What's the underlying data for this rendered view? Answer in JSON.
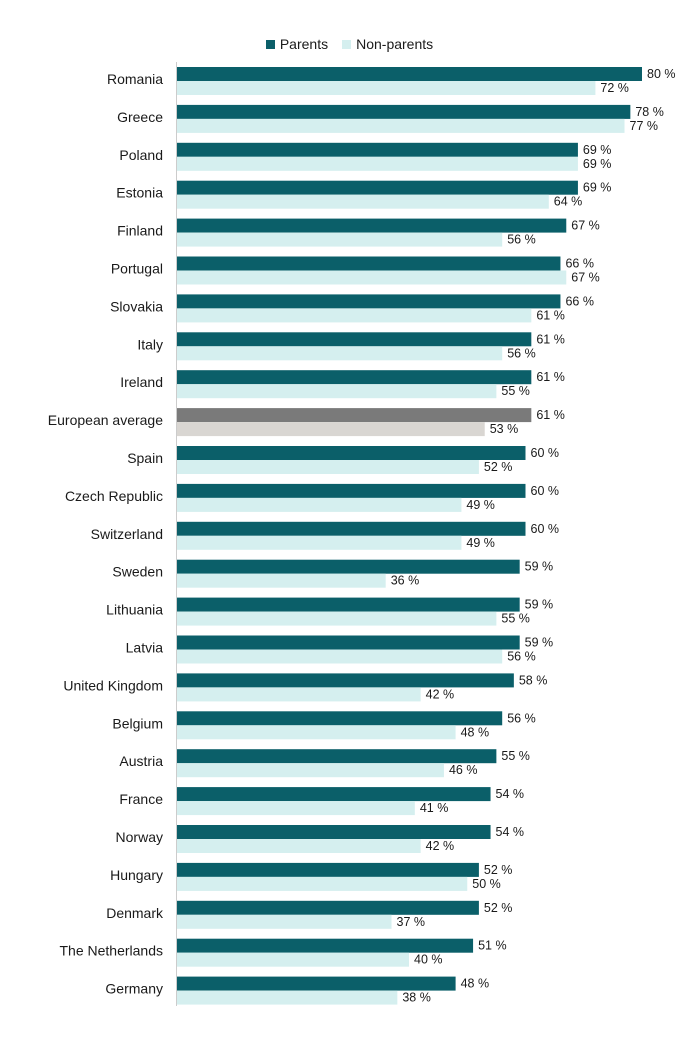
{
  "chart_data": {
    "type": "bar",
    "orientation": "horizontal",
    "unit_suffix": " %",
    "xlim": [
      0,
      80
    ],
    "grid": false,
    "legend_position": "top-center",
    "categories": [
      "Romania",
      "Greece",
      "Poland",
      "Estonia",
      "Finland",
      "Portugal",
      "Slovakia",
      "Italy",
      "Ireland",
      "European average",
      "Spain",
      "Czech Republic",
      "Switzerland",
      "Sweden",
      "Lithuania",
      "Latvia",
      "United Kingdom",
      "Belgium",
      "Austria",
      "France",
      "Norway",
      "Hungary",
      "Denmark",
      "The Netherlands",
      "Germany"
    ],
    "highlight_category": "European average",
    "series": [
      {
        "name": "Parents",
        "color": "#0b5f69",
        "highlight_color": "#7a7a7a",
        "values": [
          80,
          78,
          69,
          69,
          67,
          66,
          66,
          61,
          61,
          61,
          60,
          60,
          60,
          59,
          59,
          59,
          58,
          56,
          55,
          54,
          54,
          52,
          52,
          51,
          48
        ]
      },
      {
        "name": "Non-parents",
        "color": "#d5efef",
        "highlight_color": "#d9d6d2",
        "values": [
          72,
          77,
          69,
          64,
          56,
          67,
          61,
          56,
          55,
          53,
          52,
          49,
          49,
          36,
          55,
          56,
          42,
          48,
          46,
          41,
          42,
          50,
          37,
          40,
          38
        ]
      }
    ]
  }
}
